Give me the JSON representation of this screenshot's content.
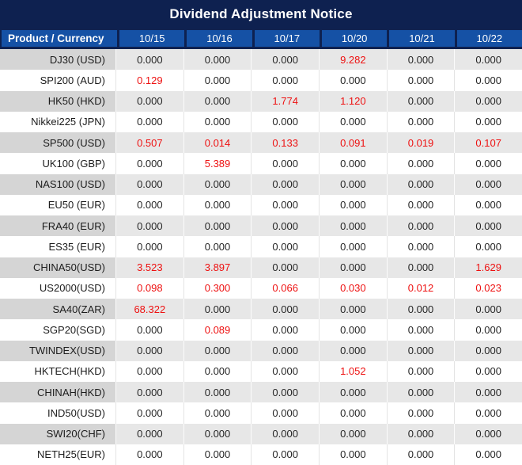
{
  "title": "Dividend Adjustment Notice",
  "colors": {
    "navy": "#0e2150",
    "header_blue": "#1551a5",
    "gray_product": "#d5d5d5",
    "gray_value": "#e7e7e7",
    "value_text": "#262626",
    "red": "#ee1111"
  },
  "table": {
    "product_header": "Product / Currency",
    "date_headers": [
      "10/15",
      "10/16",
      "10/17",
      "10/20",
      "10/21",
      "10/22"
    ],
    "rows": [
      {
        "product": "DJ30 (USD)",
        "values": [
          "0.000",
          "0.000",
          "0.000",
          "9.282",
          "0.000",
          "0.000"
        ],
        "red": [
          false,
          false,
          false,
          true,
          false,
          false
        ]
      },
      {
        "product": "SPI200 (AUD)",
        "values": [
          "0.129",
          "0.000",
          "0.000",
          "0.000",
          "0.000",
          "0.000"
        ],
        "red": [
          true,
          false,
          false,
          false,
          false,
          false
        ]
      },
      {
        "product": "HK50 (HKD)",
        "values": [
          "0.000",
          "0.000",
          "1.774",
          "1.120",
          "0.000",
          "0.000"
        ],
        "red": [
          false,
          false,
          true,
          true,
          false,
          false
        ]
      },
      {
        "product": "Nikkei225 (JPN)",
        "values": [
          "0.000",
          "0.000",
          "0.000",
          "0.000",
          "0.000",
          "0.000"
        ],
        "red": [
          false,
          false,
          false,
          false,
          false,
          false
        ]
      },
      {
        "product": "SP500 (USD)",
        "values": [
          "0.507",
          "0.014",
          "0.133",
          "0.091",
          "0.019",
          "0.107"
        ],
        "red": [
          true,
          true,
          true,
          true,
          true,
          true
        ]
      },
      {
        "product": "UK100 (GBP)",
        "values": [
          "0.000",
          "5.389",
          "0.000",
          "0.000",
          "0.000",
          "0.000"
        ],
        "red": [
          false,
          true,
          false,
          false,
          false,
          false
        ]
      },
      {
        "product": "NAS100 (USD)",
        "values": [
          "0.000",
          "0.000",
          "0.000",
          "0.000",
          "0.000",
          "0.000"
        ],
        "red": [
          false,
          false,
          false,
          false,
          false,
          false
        ]
      },
      {
        "product": "EU50 (EUR)",
        "values": [
          "0.000",
          "0.000",
          "0.000",
          "0.000",
          "0.000",
          "0.000"
        ],
        "red": [
          false,
          false,
          false,
          false,
          false,
          false
        ]
      },
      {
        "product": "FRA40 (EUR)",
        "values": [
          "0.000",
          "0.000",
          "0.000",
          "0.000",
          "0.000",
          "0.000"
        ],
        "red": [
          false,
          false,
          false,
          false,
          false,
          false
        ]
      },
      {
        "product": "ES35 (EUR)",
        "values": [
          "0.000",
          "0.000",
          "0.000",
          "0.000",
          "0.000",
          "0.000"
        ],
        "red": [
          false,
          false,
          false,
          false,
          false,
          false
        ]
      },
      {
        "product": "CHINA50(USD)",
        "values": [
          "3.523",
          "3.897",
          "0.000",
          "0.000",
          "0.000",
          "1.629"
        ],
        "red": [
          true,
          true,
          false,
          false,
          false,
          true
        ]
      },
      {
        "product": "US2000(USD)",
        "values": [
          "0.098",
          "0.300",
          "0.066",
          "0.030",
          "0.012",
          "0.023"
        ],
        "red": [
          true,
          true,
          true,
          true,
          true,
          true
        ]
      },
      {
        "product": "SA40(ZAR)",
        "values": [
          "68.322",
          "0.000",
          "0.000",
          "0.000",
          "0.000",
          "0.000"
        ],
        "red": [
          true,
          false,
          false,
          false,
          false,
          false
        ]
      },
      {
        "product": "SGP20(SGD)",
        "values": [
          "0.000",
          "0.089",
          "0.000",
          "0.000",
          "0.000",
          "0.000"
        ],
        "red": [
          false,
          true,
          false,
          false,
          false,
          false
        ]
      },
      {
        "product": "TWINDEX(USD)",
        "values": [
          "0.000",
          "0.000",
          "0.000",
          "0.000",
          "0.000",
          "0.000"
        ],
        "red": [
          false,
          false,
          false,
          false,
          false,
          false
        ]
      },
      {
        "product": "HKTECH(HKD)",
        "values": [
          "0.000",
          "0.000",
          "0.000",
          "1.052",
          "0.000",
          "0.000"
        ],
        "red": [
          false,
          false,
          false,
          true,
          false,
          false
        ]
      },
      {
        "product": "CHINAH(HKD)",
        "values": [
          "0.000",
          "0.000",
          "0.000",
          "0.000",
          "0.000",
          "0.000"
        ],
        "red": [
          false,
          false,
          false,
          false,
          false,
          false
        ]
      },
      {
        "product": "IND50(USD)",
        "values": [
          "0.000",
          "0.000",
          "0.000",
          "0.000",
          "0.000",
          "0.000"
        ],
        "red": [
          false,
          false,
          false,
          false,
          false,
          false
        ]
      },
      {
        "product": "SWI20(CHF)",
        "values": [
          "0.000",
          "0.000",
          "0.000",
          "0.000",
          "0.000",
          "0.000"
        ],
        "red": [
          false,
          false,
          false,
          false,
          false,
          false
        ]
      },
      {
        "product": "NETH25(EUR)",
        "values": [
          "0.000",
          "0.000",
          "0.000",
          "0.000",
          "0.000",
          "0.000"
        ],
        "red": [
          false,
          false,
          false,
          false,
          false,
          false
        ]
      }
    ]
  }
}
